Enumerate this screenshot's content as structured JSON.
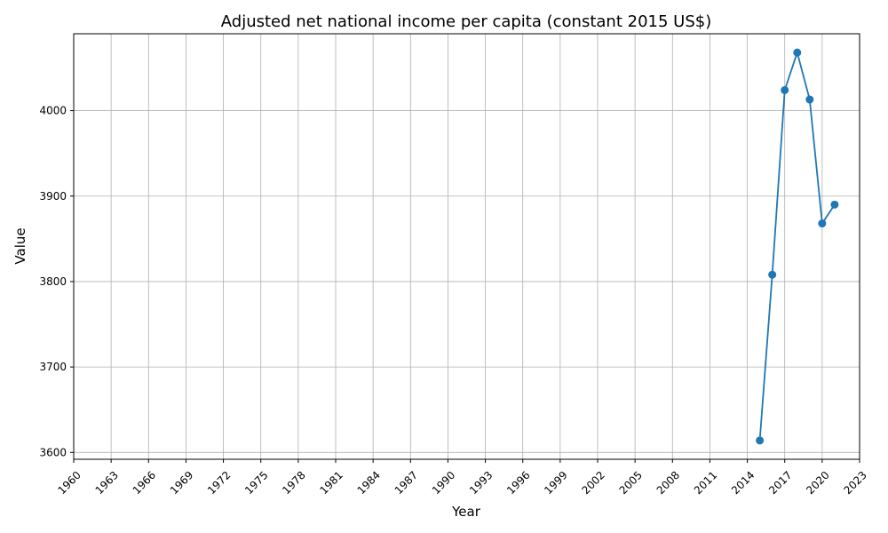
{
  "chart_data": {
    "type": "line",
    "title": "Adjusted net national income per capita (constant 2015 US$)",
    "xlabel": "Year",
    "ylabel": "Value",
    "xlim": [
      1960,
      2023
    ],
    "ylim": [
      3592,
      4090
    ],
    "x_ticks": [
      1960,
      1963,
      1966,
      1969,
      1972,
      1975,
      1978,
      1981,
      1984,
      1987,
      1990,
      1993,
      1996,
      1999,
      2002,
      2005,
      2008,
      2011,
      2014,
      2017,
      2020,
      2023
    ],
    "y_ticks": [
      3600,
      3700,
      3800,
      3900,
      4000
    ],
    "grid": true,
    "legend": "none",
    "series": [
      {
        "color": "#1f77b4",
        "marker": "circle",
        "x": [
          2015,
          2016,
          2017,
          2018,
          2019,
          2020,
          2021
        ],
        "y": [
          3614,
          3808,
          4024,
          4068,
          4013,
          3868,
          3890
        ]
      }
    ]
  }
}
